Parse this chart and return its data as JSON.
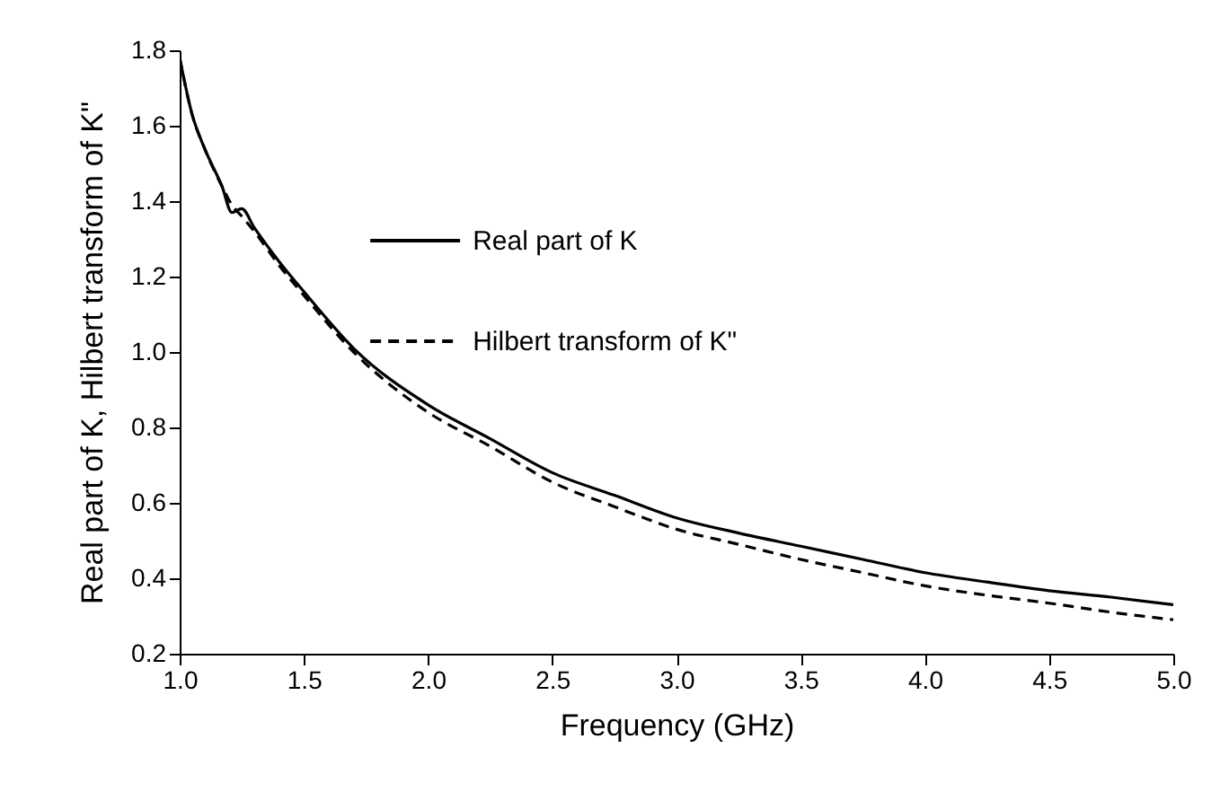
{
  "chart_data": {
    "type": "line",
    "xlabel": "Frequency (GHz)",
    "ylabel": "Real part of K, Hilbert transform of K\"",
    "legend": "top",
    "x": [
      1.0,
      1.05,
      1.1,
      1.17,
      1.21,
      1.25,
      1.3,
      1.4,
      1.5,
      1.7,
      2.0,
      2.25,
      2.5,
      2.75,
      3.0,
      3.25,
      3.5,
      3.75,
      4.0,
      4.25,
      4.5,
      4.75,
      5.0
    ],
    "series": [
      {
        "name": "Real part of K",
        "color": "#000000",
        "line_style": "solid",
        "values": [
          1.78,
          1.63,
          1.54,
          1.44,
          1.37,
          1.38,
          1.33,
          1.24,
          1.16,
          1.01,
          0.86,
          0.77,
          0.68,
          0.62,
          0.56,
          0.52,
          0.485,
          0.45,
          0.415,
          0.39,
          0.367,
          0.35,
          0.33
        ]
      },
      {
        "name": "Hilbert transform of K\"",
        "color": "#000000",
        "line_style": "dashed",
        "values": [
          1.78,
          1.63,
          1.54,
          1.44,
          1.39,
          1.36,
          1.32,
          1.23,
          1.15,
          1.0,
          0.84,
          0.75,
          0.655,
          0.59,
          0.53,
          0.49,
          0.45,
          0.415,
          0.38,
          0.355,
          0.334,
          0.31,
          0.29
        ]
      }
    ],
    "xlim": [
      1.0,
      5.0
    ],
    "xticks": [
      {
        "value": 1,
        "label": "1.0"
      },
      1.5,
      {
        "value": 2,
        "label": "2.0"
      },
      2.5,
      {
        "value": 3,
        "label": "3.0"
      },
      3.5,
      {
        "value": 4,
        "label": "4.0"
      },
      4.5,
      {
        "value": 5,
        "label": "5.0"
      }
    ],
    "ylim": [
      0.2,
      1.8
    ],
    "yticks": [
      0.2,
      0.4,
      0.6,
      0.8,
      {
        "value": 1,
        "label": "1.0"
      },
      1.2,
      1.4,
      1.6,
      1.8
    ]
  }
}
